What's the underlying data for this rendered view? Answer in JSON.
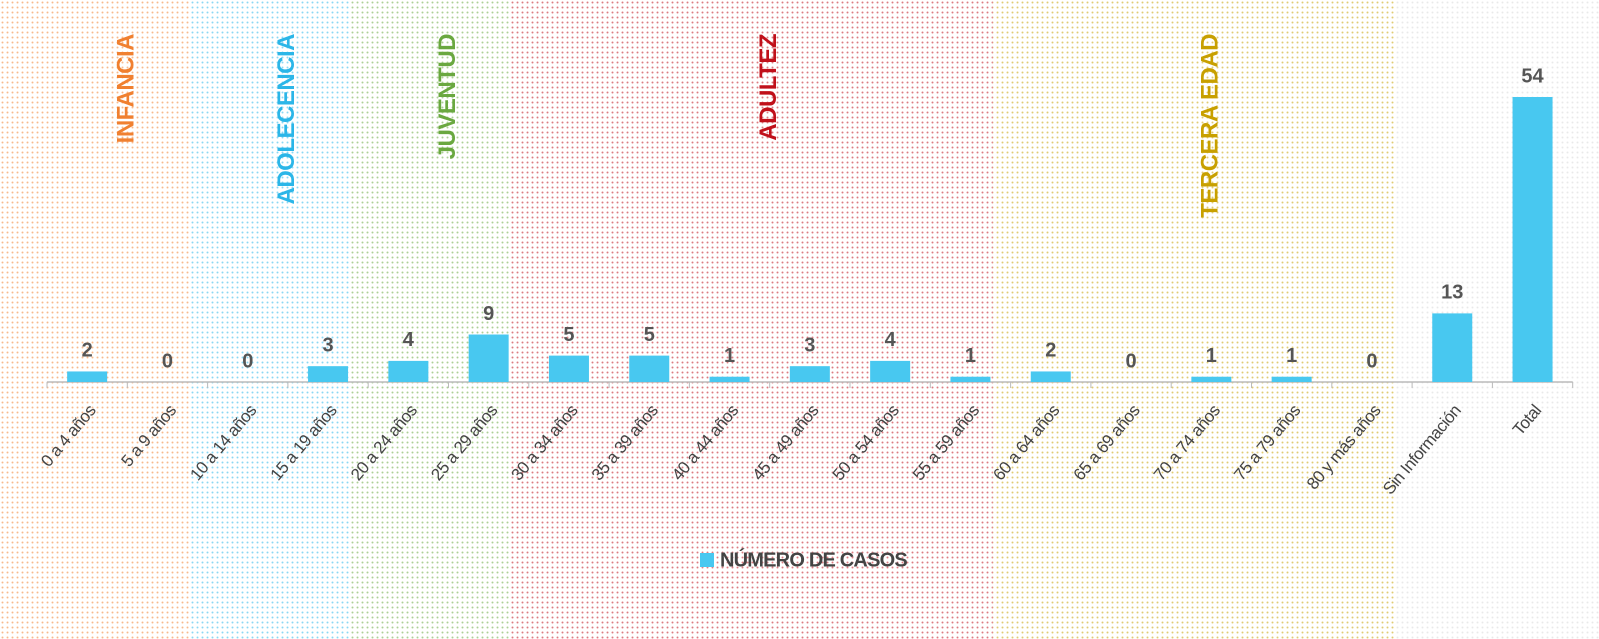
{
  "chart_data": {
    "type": "bar",
    "categories": [
      "0 a 4 años",
      "5 a 9 años",
      "10 a 14 años",
      "15 a 19 años",
      "20 a 24 años",
      "25 a 29 años",
      "30 a 34 años",
      "35 a 39 años",
      "40 a 44 años",
      "45 a 49 años",
      "50 a 54 años",
      "55 a 59 años",
      "60 a 64 años",
      "65 a 69 años",
      "70 a 74 años",
      "75 a 79 años",
      "80 y más años",
      "Sin Información",
      "Total"
    ],
    "series": [
      {
        "name": "NÚMERO DE CASOS",
        "color": "#48c8f0",
        "values": [
          2,
          0,
          0,
          3,
          4,
          9,
          5,
          5,
          1,
          3,
          4,
          1,
          2,
          0,
          1,
          1,
          0,
          13,
          54
        ]
      }
    ],
    "groups": [
      {
        "label": "INFANCIA",
        "color": "#f08030",
        "from": "0 a 4 años",
        "to": "5 a 9 años"
      },
      {
        "label": "ADOLECENCIA",
        "color": "#2bb6e8",
        "from": "10 a 14 años",
        "to": "15 a 19 años"
      },
      {
        "label": "JUVENTUD",
        "color": "#6aa840",
        "from": "20 a 24 años",
        "to": "25 a 29 años"
      },
      {
        "label": "ADULTEZ",
        "color": "#c0101a",
        "from": "30 a 34 años",
        "to": "55 a 59 años"
      },
      {
        "label": "TERCERA EDAD",
        "color": "#c8a000",
        "from": "60 a 64 años",
        "to": "80 y más años"
      }
    ],
    "legend": "bottom"
  }
}
